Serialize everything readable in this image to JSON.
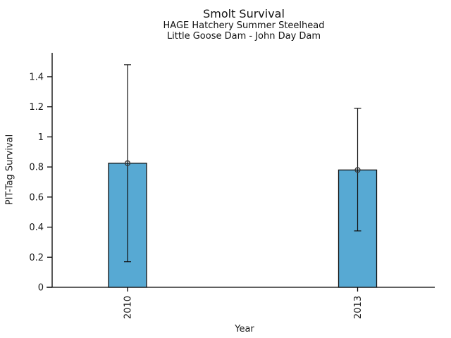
{
  "chart_data": {
    "type": "bar",
    "title": "Smolt Survival",
    "subtitles": [
      "HAGE Hatchery Summer Steelhead",
      "Little Goose Dam - John Day Dam"
    ],
    "xlabel": "Year",
    "ylabel": "PIT-Tag Survival",
    "categories": [
      "2010",
      "2013"
    ],
    "values": [
      0.825,
      0.78
    ],
    "error_bars": {
      "lower": [
        0.17,
        0.375
      ],
      "upper": [
        1.48,
        1.19
      ]
    },
    "yticks": {
      "values": [
        0,
        0.2,
        0.4,
        0.6,
        0.8,
        1,
        1.2,
        1.4
      ],
      "labels": [
        "0",
        "0.2",
        "0.4",
        "0.6",
        "0.8",
        "1",
        "1.2",
        "1.4"
      ]
    },
    "ylim": [
      0,
      1.56
    ],
    "legend": "none",
    "grid": false,
    "marker": "open-circle",
    "colors": {
      "bar_fill": "#57a9d3",
      "bar_edge": "#111111",
      "axis": "#000000",
      "error_bar": "#111111",
      "marker_stroke": "#3a3a3a",
      "text": "#1a1a1a"
    }
  }
}
